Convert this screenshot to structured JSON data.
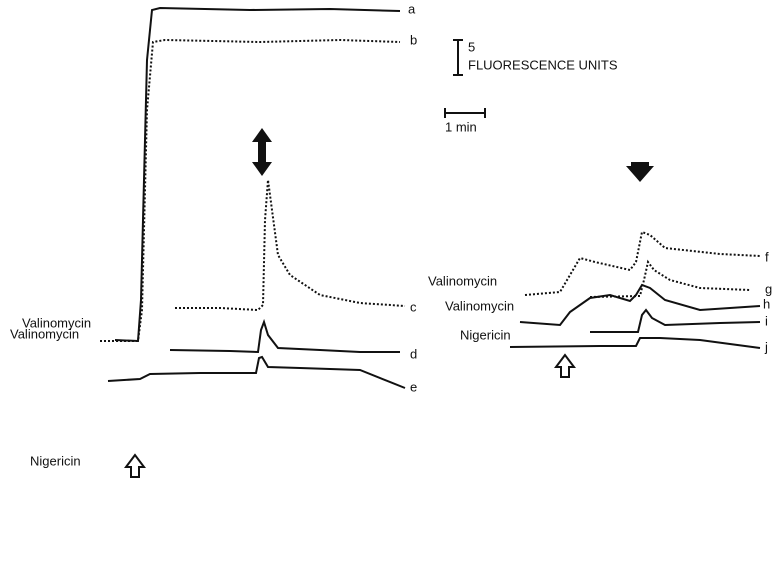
{
  "traces": [
    {
      "label": "a"
    },
    {
      "label": "b"
    },
    {
      "label": "c"
    },
    {
      "label": "d"
    },
    {
      "label": "e"
    },
    {
      "label": "f"
    },
    {
      "label": "g"
    },
    {
      "label": "h"
    },
    {
      "label": "i"
    },
    {
      "label": "j"
    }
  ],
  "annotations": [
    {
      "label": "Valinomycin"
    },
    {
      "label": "Valinomycin"
    },
    {
      "label": "Nigericin"
    },
    {
      "label": "Valinomycin"
    },
    {
      "label": "Valinomycin"
    },
    {
      "label": "Nigericin"
    }
  ],
  "scale": {
    "fluorescence": {
      "value": "5",
      "unit": "FLUORESCENCE UNITS"
    },
    "time": "1 min"
  }
}
